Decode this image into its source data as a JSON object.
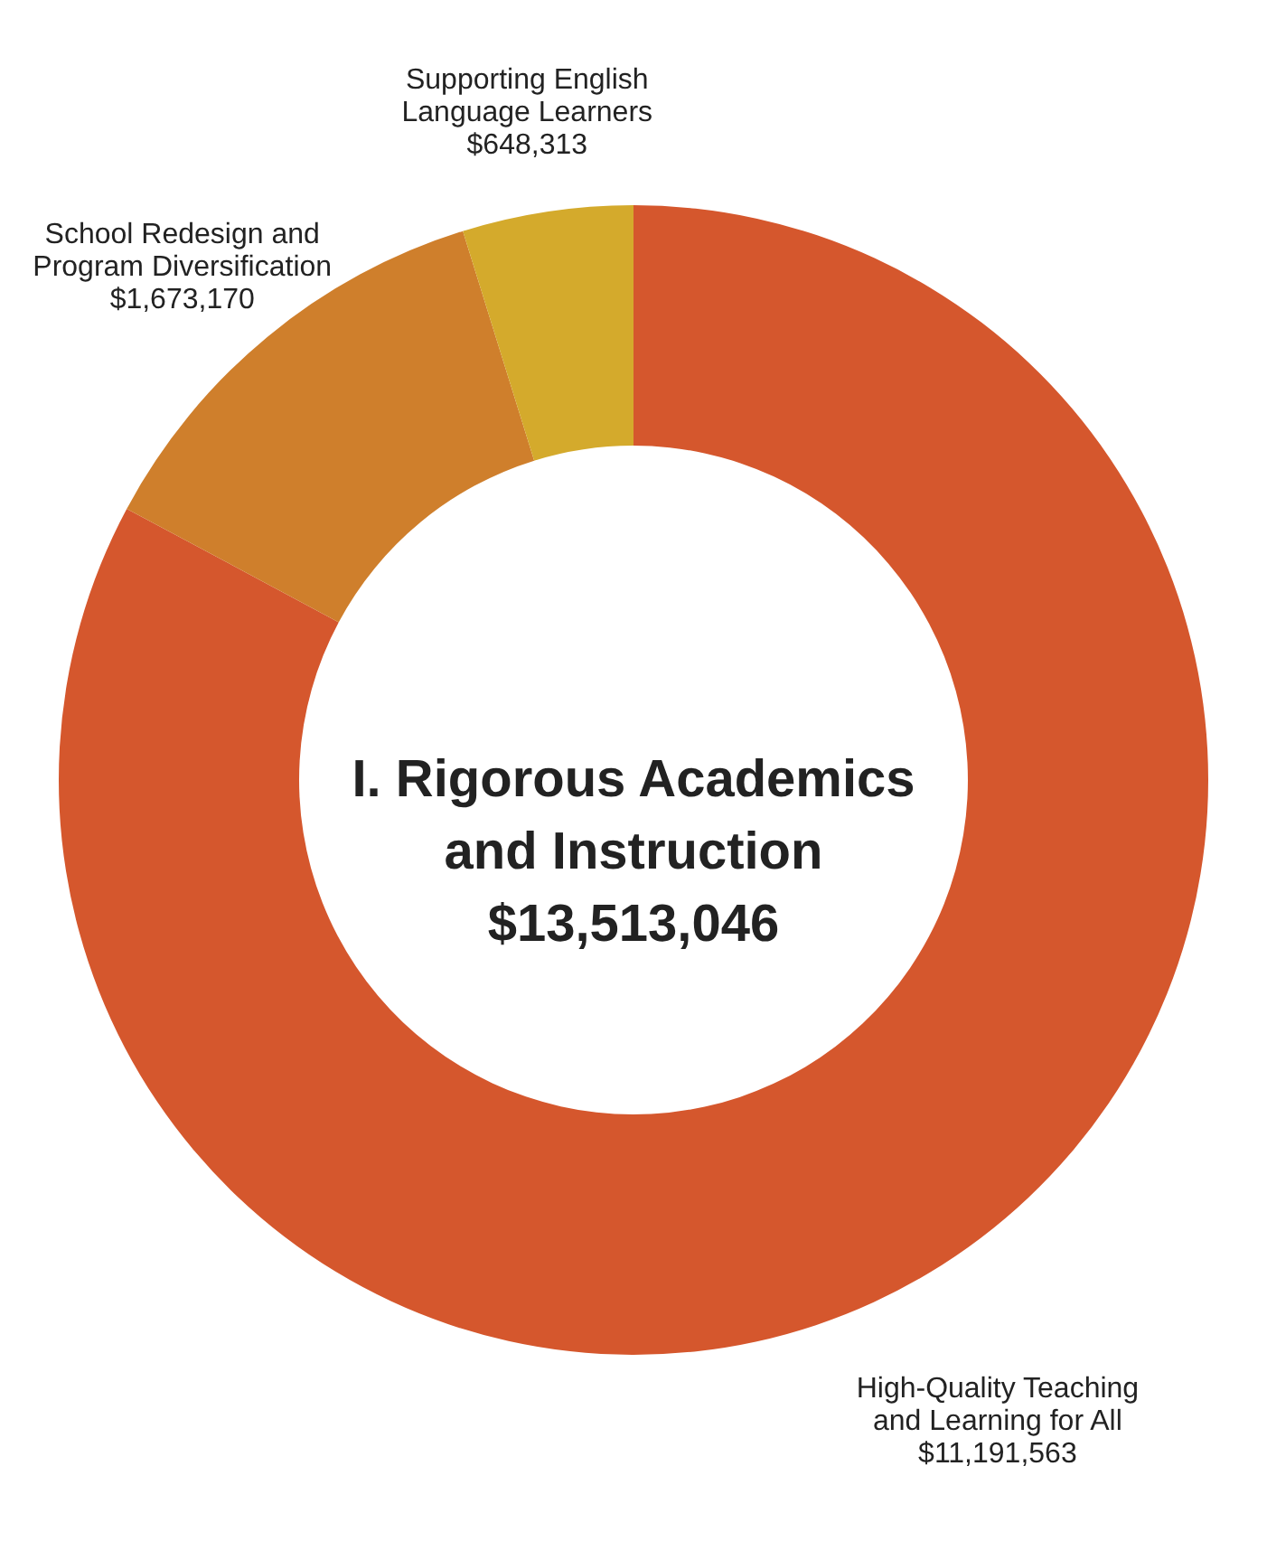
{
  "chart_data": {
    "type": "donut",
    "title": "I. Rigorous Academics and Instruction",
    "subtitle": "$13,513,046",
    "categories": [
      "High-Quality Teaching and Learning for All",
      "School Redesign and Program Diversification",
      "Supporting English Language Learners"
    ],
    "values": [
      11191563,
      1673170,
      648313
    ],
    "value_labels": [
      "$11,191,563",
      "$1,673,170",
      "$648,313"
    ],
    "colors": [
      "#d5572d",
      "#cf7f2c",
      "#d4aa2c"
    ],
    "legend": false
  }
}
